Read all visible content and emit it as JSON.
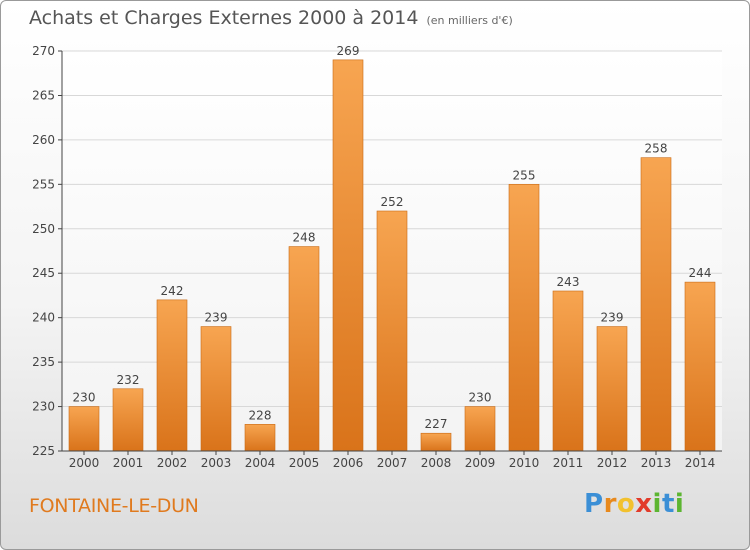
{
  "chart_data": {
    "type": "bar",
    "title": "Achats et Charges Externes 2000 à 2014",
    "subtitle": "(en milliers d'€)",
    "categories": [
      "2000",
      "2001",
      "2002",
      "2003",
      "2004",
      "2005",
      "2006",
      "2007",
      "2008",
      "2009",
      "2010",
      "2011",
      "2012",
      "2013",
      "2014"
    ],
    "values": [
      230,
      232,
      242,
      239,
      228,
      248,
      269,
      252,
      227,
      230,
      255,
      243,
      239,
      258,
      244
    ],
    "ylim": [
      225,
      270
    ],
    "yticks": [
      225,
      230,
      235,
      240,
      245,
      250,
      255,
      260,
      265,
      270
    ],
    "grid": true,
    "xlabel": "",
    "ylabel": ""
  },
  "footer": {
    "town": "FONTAINE-LE-DUN",
    "logo_letters": [
      "P",
      "r",
      "o",
      "x",
      "i",
      "t",
      "i"
    ],
    "logo_colors": [
      "#3b8fd6",
      "#e8891c",
      "#f2c12e",
      "#e23b2a",
      "#5cb531",
      "#3b8fd6",
      "#5cb531"
    ]
  },
  "colors": {
    "bar_top": "#f7a551",
    "bar_bottom": "#d9731a",
    "bar_edge": "#c96a14",
    "grid": "#d8d8d8",
    "axis": "#444444"
  }
}
